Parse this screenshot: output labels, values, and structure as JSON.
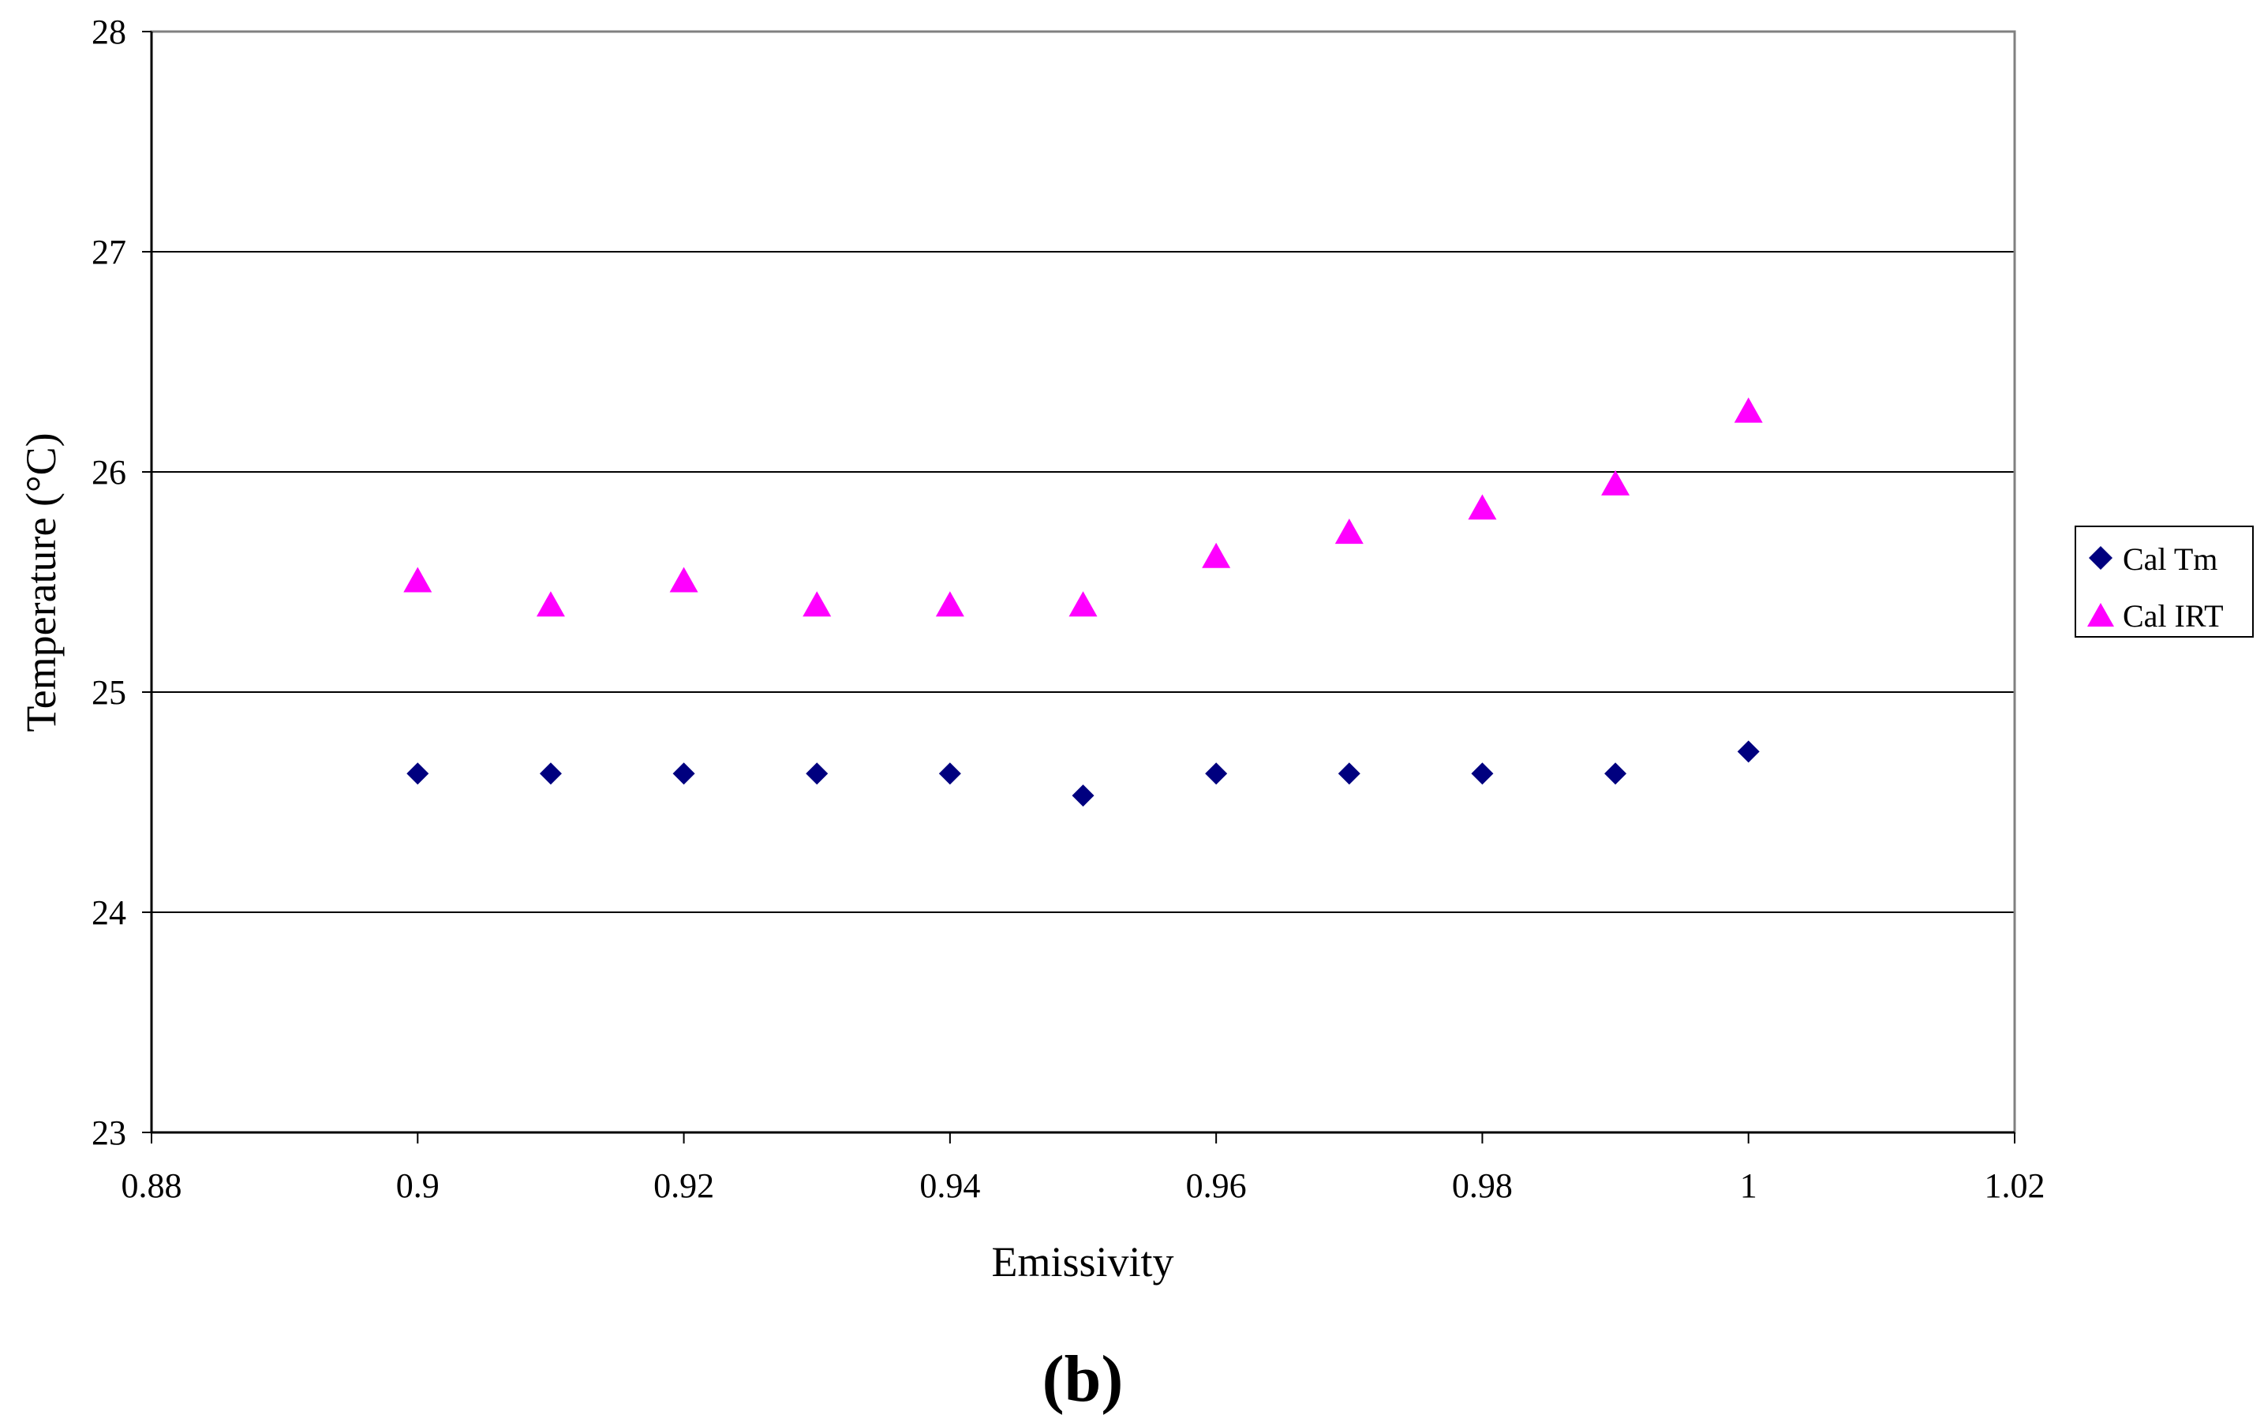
{
  "chart_data": {
    "type": "scatter",
    "xlabel": "Emissivity",
    "ylabel": "Temperature (°C)",
    "panel_label": "(b)",
    "xlim": [
      0.88,
      1.02
    ],
    "ylim": [
      23,
      28
    ],
    "xticks": [
      "0.88",
      "0.9",
      "0.92",
      "0.94",
      "0.96",
      "0.98",
      "1",
      "1.02"
    ],
    "yticks": [
      "23",
      "24",
      "25",
      "26",
      "27",
      "28"
    ],
    "grid": "horizontal",
    "legend_position": "right",
    "series": [
      {
        "name": "Cal Tm",
        "marker": "diamond",
        "color": "#00007f",
        "x": [
          0.9,
          0.91,
          0.92,
          0.93,
          0.94,
          0.95,
          0.96,
          0.97,
          0.98,
          0.99,
          1.0
        ],
        "y": [
          24.63,
          24.63,
          24.63,
          24.63,
          24.63,
          24.53,
          24.63,
          24.63,
          24.63,
          24.63,
          24.73
        ]
      },
      {
        "name": "Cal IRT",
        "marker": "triangle",
        "color": "#ff00ff",
        "x": [
          0.9,
          0.91,
          0.92,
          0.93,
          0.94,
          0.95,
          0.96,
          0.97,
          0.98,
          0.99,
          1.0
        ],
        "y": [
          25.5,
          25.39,
          25.5,
          25.39,
          25.39,
          25.39,
          25.61,
          25.72,
          25.83,
          25.94,
          26.27
        ]
      }
    ]
  }
}
